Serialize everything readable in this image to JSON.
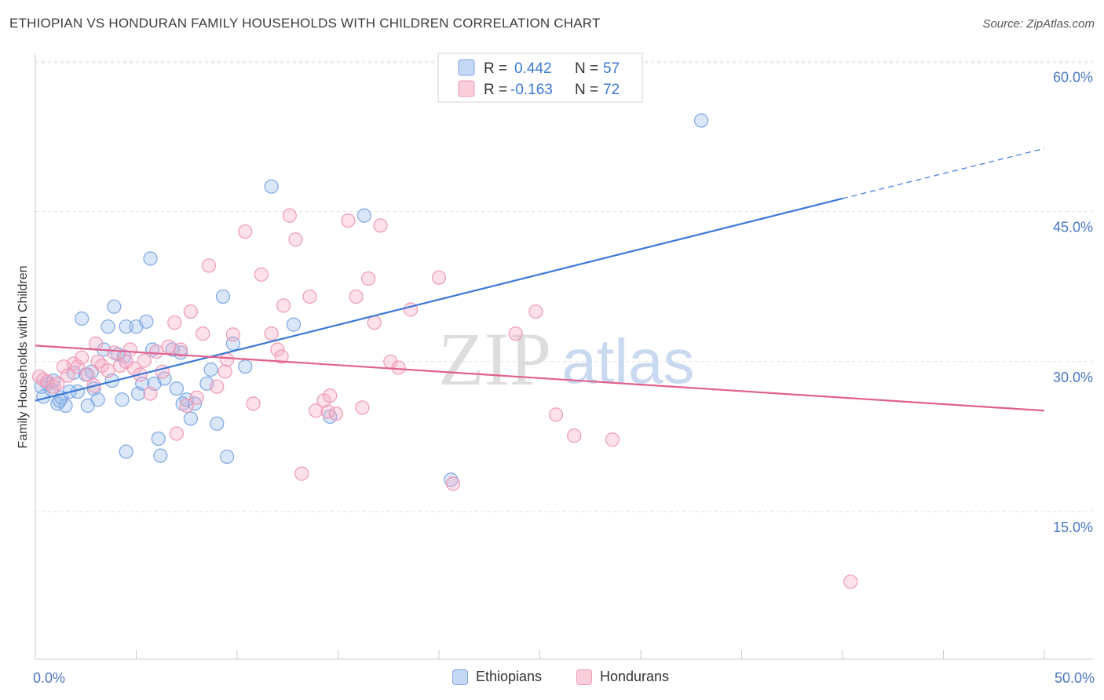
{
  "title": "ETHIOPIAN VS HONDURAN FAMILY HOUSEHOLDS WITH CHILDREN CORRELATION CHART",
  "source": "Source: ZipAtlas.com",
  "watermark": {
    "zip": "ZIP",
    "atlas": "atlas"
  },
  "legend_top": [
    {
      "r_label": "R = ",
      "r_value": "0.442",
      "n_label": "N = ",
      "n_value": "57",
      "color": "#7fa7e3",
      "fill": "#c5d8f5"
    },
    {
      "r_label": "R = ",
      "r_value": "-0.163",
      "n_label": "N = ",
      "n_value": "72",
      "color": "#ee9ab5",
      "fill": "#f9cdda"
    }
  ],
  "legend_bottom": [
    {
      "label": "Ethiopians",
      "color": "#7fa7e3",
      "fill": "#c5d8f5"
    },
    {
      "label": "Hondurans",
      "color": "#ee9ab5",
      "fill": "#f9cdda"
    }
  ],
  "chart_data": {
    "type": "scatter",
    "title": "ETHIOPIAN VS HONDURAN FAMILY HOUSEHOLDS WITH CHILDREN CORRELATION CHART",
    "xlabel": "",
    "ylabel": "Family Households with Children",
    "xlim": [
      0,
      50
    ],
    "ylim": [
      0,
      62
    ],
    "x_tick_labels": [
      "0.0%",
      "50.0%"
    ],
    "y_ticks": [
      15,
      30,
      45,
      60
    ],
    "y_tick_labels": [
      "15.0%",
      "30.0%",
      "45.0%",
      "60.0%"
    ],
    "grid": true,
    "legend_placement": "top-center",
    "series": [
      {
        "name": "Ethiopians",
        "color": "#3a78d6",
        "points": [
          [
            0.3,
            27.5
          ],
          [
            0.4,
            26.5
          ],
          [
            0.6,
            27.8
          ],
          [
            0.8,
            27.2
          ],
          [
            0.9,
            28.1
          ],
          [
            1.1,
            25.8
          ],
          [
            1.3,
            26.4
          ],
          [
            1.5,
            25.6
          ],
          [
            1.7,
            27.0
          ],
          [
            1.9,
            28.9
          ],
          [
            2.1,
            27.0
          ],
          [
            2.3,
            34.3
          ],
          [
            2.6,
            25.6
          ],
          [
            2.8,
            29.0
          ],
          [
            2.9,
            27.3
          ],
          [
            3.1,
            26.2
          ],
          [
            3.4,
            31.2
          ],
          [
            3.6,
            33.5
          ],
          [
            3.8,
            28.1
          ],
          [
            3.9,
            35.5
          ],
          [
            4.1,
            30.7
          ],
          [
            4.3,
            26.2
          ],
          [
            4.5,
            21.0
          ],
          [
            4.5,
            33.5
          ],
          [
            5.0,
            33.5
          ],
          [
            5.1,
            26.8
          ],
          [
            5.3,
            27.8
          ],
          [
            5.5,
            34.0
          ],
          [
            5.7,
            40.3
          ],
          [
            5.8,
            31.2
          ],
          [
            5.9,
            27.8
          ],
          [
            6.1,
            22.3
          ],
          [
            6.2,
            20.6
          ],
          [
            6.4,
            28.3
          ],
          [
            6.8,
            31.2
          ],
          [
            7.0,
            27.3
          ],
          [
            7.3,
            25.8
          ],
          [
            7.5,
            26.2
          ],
          [
            7.7,
            24.3
          ],
          [
            7.9,
            25.8
          ],
          [
            8.5,
            27.8
          ],
          [
            8.7,
            29.2
          ],
          [
            9.0,
            23.8
          ],
          [
            9.3,
            36.5
          ],
          [
            9.5,
            20.5
          ],
          [
            9.8,
            31.8
          ],
          [
            11.7,
            47.5
          ],
          [
            12.8,
            33.7
          ],
          [
            14.6,
            24.5
          ],
          [
            16.3,
            44.6
          ],
          [
            20.6,
            18.2
          ],
          [
            33.0,
            54.1
          ],
          [
            4.4,
            30.5
          ],
          [
            1.2,
            26.1
          ],
          [
            2.5,
            28.7
          ],
          [
            7.2,
            30.9
          ],
          [
            10.4,
            29.5
          ]
        ],
        "trend": {
          "x": [
            0,
            40
          ],
          "y": [
            26.1,
            46.3
          ],
          "dashed_to": [
            50,
            51.3
          ]
        }
      },
      {
        "name": "Hondurans",
        "color": "#e1608f",
        "points": [
          [
            0.2,
            28.5
          ],
          [
            0.4,
            28.2
          ],
          [
            0.6,
            28.0
          ],
          [
            0.9,
            27.5
          ],
          [
            1.1,
            27.8
          ],
          [
            1.4,
            29.5
          ],
          [
            1.6,
            28.6
          ],
          [
            1.9,
            29.8
          ],
          [
            2.1,
            29.5
          ],
          [
            2.3,
            30.4
          ],
          [
            2.6,
            28.7
          ],
          [
            2.9,
            27.6
          ],
          [
            3.1,
            30.0
          ],
          [
            3.3,
            29.6
          ],
          [
            3.6,
            29.1
          ],
          [
            3.9,
            30.9
          ],
          [
            4.2,
            29.6
          ],
          [
            4.5,
            30.0
          ],
          [
            4.7,
            31.2
          ],
          [
            4.9,
            29.3
          ],
          [
            5.2,
            28.7
          ],
          [
            5.4,
            30.1
          ],
          [
            5.7,
            26.8
          ],
          [
            6.0,
            31.0
          ],
          [
            6.3,
            29.0
          ],
          [
            6.6,
            31.5
          ],
          [
            6.9,
            33.9
          ],
          [
            7.2,
            31.2
          ],
          [
            7.5,
            25.6
          ],
          [
            7.7,
            35.0
          ],
          [
            8.0,
            26.4
          ],
          [
            8.3,
            32.8
          ],
          [
            8.6,
            39.6
          ],
          [
            9.0,
            27.5
          ],
          [
            9.5,
            30.2
          ],
          [
            9.8,
            32.7
          ],
          [
            10.4,
            43.0
          ],
          [
            10.8,
            25.8
          ],
          [
            11.2,
            38.7
          ],
          [
            11.7,
            32.8
          ],
          [
            12.0,
            31.2
          ],
          [
            12.3,
            35.6
          ],
          [
            12.6,
            44.6
          ],
          [
            12.9,
            42.2
          ],
          [
            13.2,
            18.8
          ],
          [
            13.6,
            36.5
          ],
          [
            13.9,
            25.1
          ],
          [
            14.3,
            26.1
          ],
          [
            14.5,
            25.0
          ],
          [
            14.9,
            24.8
          ],
          [
            15.5,
            44.1
          ],
          [
            15.9,
            36.5
          ],
          [
            16.2,
            25.4
          ],
          [
            16.5,
            38.3
          ],
          [
            16.8,
            33.9
          ],
          [
            17.1,
            43.6
          ],
          [
            17.6,
            30.0
          ],
          [
            18.0,
            29.4
          ],
          [
            18.6,
            35.2
          ],
          [
            20.0,
            38.4
          ],
          [
            20.7,
            17.8
          ],
          [
            23.8,
            32.8
          ],
          [
            24.8,
            35.0
          ],
          [
            25.8,
            24.7
          ],
          [
            26.7,
            22.6
          ],
          [
            28.6,
            22.2
          ],
          [
            40.4,
            8.0
          ],
          [
            3.0,
            31.8
          ],
          [
            7.0,
            22.8
          ],
          [
            14.6,
            26.6
          ],
          [
            9.4,
            29.0
          ],
          [
            12.2,
            30.5
          ]
        ],
        "trend": {
          "x": [
            0,
            50
          ],
          "y": [
            31.6,
            25.1
          ]
        }
      }
    ]
  }
}
